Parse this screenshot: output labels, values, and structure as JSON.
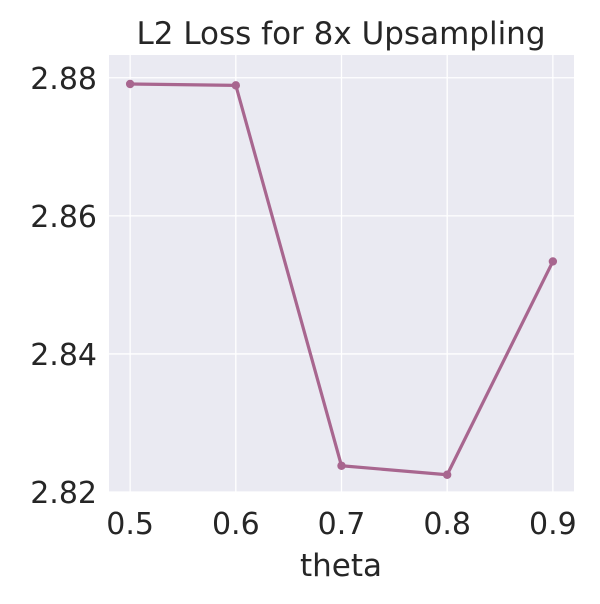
{
  "chart_data": {
    "type": "line",
    "title": "L2 Loss for 8x Upsampling",
    "xlabel": "theta",
    "ylabel": "",
    "x": [
      0.5,
      0.6,
      0.7,
      0.8,
      0.9
    ],
    "series": [
      {
        "values": [
          2.8791,
          2.8789,
          2.8238,
          2.8225,
          2.8534
        ],
        "color": "#A8668F"
      }
    ],
    "xticks": [
      0.5,
      0.6,
      0.7,
      0.8,
      0.9
    ],
    "xtick_labels": [
      "0.5",
      "0.6",
      "0.7",
      "0.8",
      "0.9"
    ],
    "yticks": [
      2.82,
      2.84,
      2.86,
      2.88
    ],
    "ytick_labels": [
      "2.82",
      "2.84",
      "2.86",
      "2.88"
    ],
    "xlim": [
      0.48,
      0.92
    ],
    "ylim": [
      2.82,
      2.8833
    ],
    "grid": true,
    "background_color": "#EAEAF2",
    "grid_color": "#FFFFFF",
    "text_color": "#262626",
    "markers": true
  }
}
